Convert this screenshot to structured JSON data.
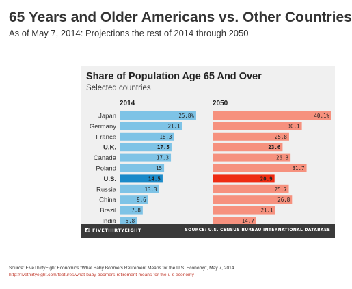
{
  "page": {
    "title": "65 Years and Older Americans vs. Other Countries",
    "subtitle": "As of May 7, 2014: Projections the rest of 2014 through 2050",
    "source_note": "Source: FiveThirtyEight Economics “What Baby Boomers Retirement Means for the U.S. Economy”, May 7, 2014",
    "source_link": "http://fivethirtyeight.com/features/what-baby-boomers-retirement-means-for-the-u-s-economy"
  },
  "chart_data": {
    "type": "bar",
    "orientation": "horizontal",
    "title": "Share of Population Age 65 And Over",
    "subtitle": "Selected countries",
    "categories": [
      "Japan",
      "Germany",
      "France",
      "U.K.",
      "Canada",
      "Poland",
      "U.S.",
      "Russia",
      "China",
      "Brazil",
      "India"
    ],
    "highlight_category": "U.S.",
    "series": [
      {
        "name": "2014",
        "values": [
          25.8,
          21.1,
          18.3,
          17.5,
          17.3,
          15,
          14.5,
          13.3,
          9.6,
          7.8,
          5.8
        ],
        "labels": [
          "25.8%",
          "21.1",
          "18.3",
          "17.5",
          "17.3",
          "15",
          "14.5",
          "13.3",
          "9.6",
          "7.8",
          "5.8"
        ],
        "color": "#7ec3e6",
        "highlight_color": "#1a8ac9"
      },
      {
        "name": "2050",
        "values": [
          40.1,
          30.1,
          25.8,
          23.6,
          26.3,
          31.7,
          20.9,
          25.7,
          26.8,
          21.1,
          14.7
        ],
        "labels": [
          "40.1%",
          "30.1",
          "25.8",
          "23.6",
          "26.3",
          "31.7",
          "20.9",
          "25.7",
          "26.8",
          "21.1",
          "14.7"
        ],
        "color": "#f6917e",
        "highlight_color": "#ee2b12"
      }
    ],
    "bold_categories": [
      "U.K.",
      "U.S."
    ],
    "xlim": [
      0,
      40.1
    ],
    "grid": false,
    "legend": "none",
    "footer_brand": "FIVETHIRTYEIGHT",
    "footer_source": "SOURCE: U.S. CENSUS BUREAU INTERNATIONAL DATABASE",
    "colors": {
      "panel_background": "#f0f0f0",
      "footer_background": "#3a3a3a",
      "label_text": "#333333"
    }
  }
}
